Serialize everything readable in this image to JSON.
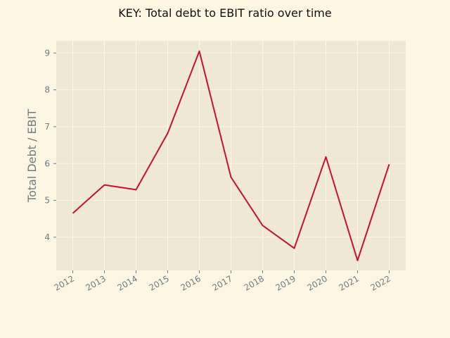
{
  "chart_data": {
    "type": "line",
    "title": "KEY: Total debt to EBIT ratio over time",
    "xlabel": "",
    "ylabel": "Total Debt / EBIT",
    "categories": [
      "2012",
      "2013",
      "2014",
      "2015",
      "2016",
      "2017",
      "2018",
      "2019",
      "2020",
      "2021",
      "2022"
    ],
    "series": [
      {
        "values": [
          4.65,
          5.42,
          5.29,
          6.82,
          9.05,
          5.63,
          4.32,
          3.7,
          6.18,
          3.37,
          5.98
        ],
        "color": "#c8102e"
      }
    ],
    "ylim": [
      3.1,
      9.33
    ],
    "yticks": [
      4,
      5,
      6,
      7,
      8,
      9
    ],
    "grid": true,
    "background": "#fdf6e3",
    "plot_background": "#eee8d5",
    "grid_color": "#fdf6e3"
  }
}
